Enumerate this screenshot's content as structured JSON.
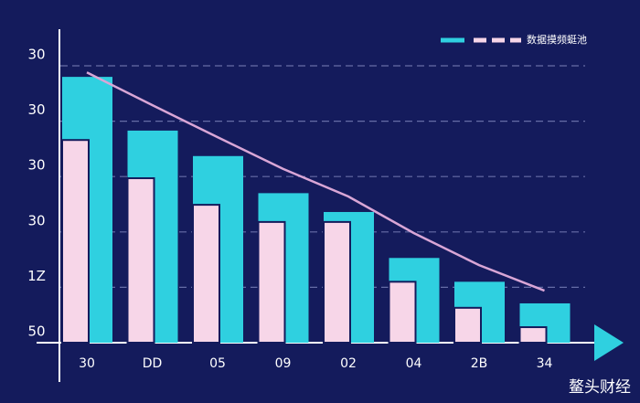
{
  "chart_data": {
    "type": "bar",
    "legend": "数据摸频蜓池",
    "watermark": "鳌头财经",
    "categories": [
      "30",
      "DD",
      "05",
      "09",
      "02",
      "04",
      "2B",
      "34"
    ],
    "series": [
      {
        "type": "bar",
        "color": "#2fd0e0",
        "values": [
          4.8,
          3.83,
          3.37,
          2.7,
          2.36,
          1.53,
          1.1,
          0.71
        ]
      },
      {
        "type": "bar",
        "color": "#f7d6e8",
        "values": [
          3.66,
          2.97,
          2.49,
          2.18,
          2.18,
          1.1,
          0.63,
          0.28
        ]
      },
      {
        "type": "line",
        "color": "#d9a6d6",
        "values": [
          4.88,
          4.29,
          3.71,
          3.14,
          2.64,
          1.98,
          1.4,
          0.94
        ]
      }
    ],
    "ylim": [
      0,
      5
    ],
    "yticks": [
      {
        "value": 0,
        "label": "50"
      },
      {
        "value": 1,
        "label": "1Z"
      },
      {
        "value": 2,
        "label": "30"
      },
      {
        "value": 3,
        "label": "30"
      },
      {
        "value": 4,
        "label": "30"
      },
      {
        "value": 5,
        "label": "30"
      }
    ],
    "grid": true
  }
}
